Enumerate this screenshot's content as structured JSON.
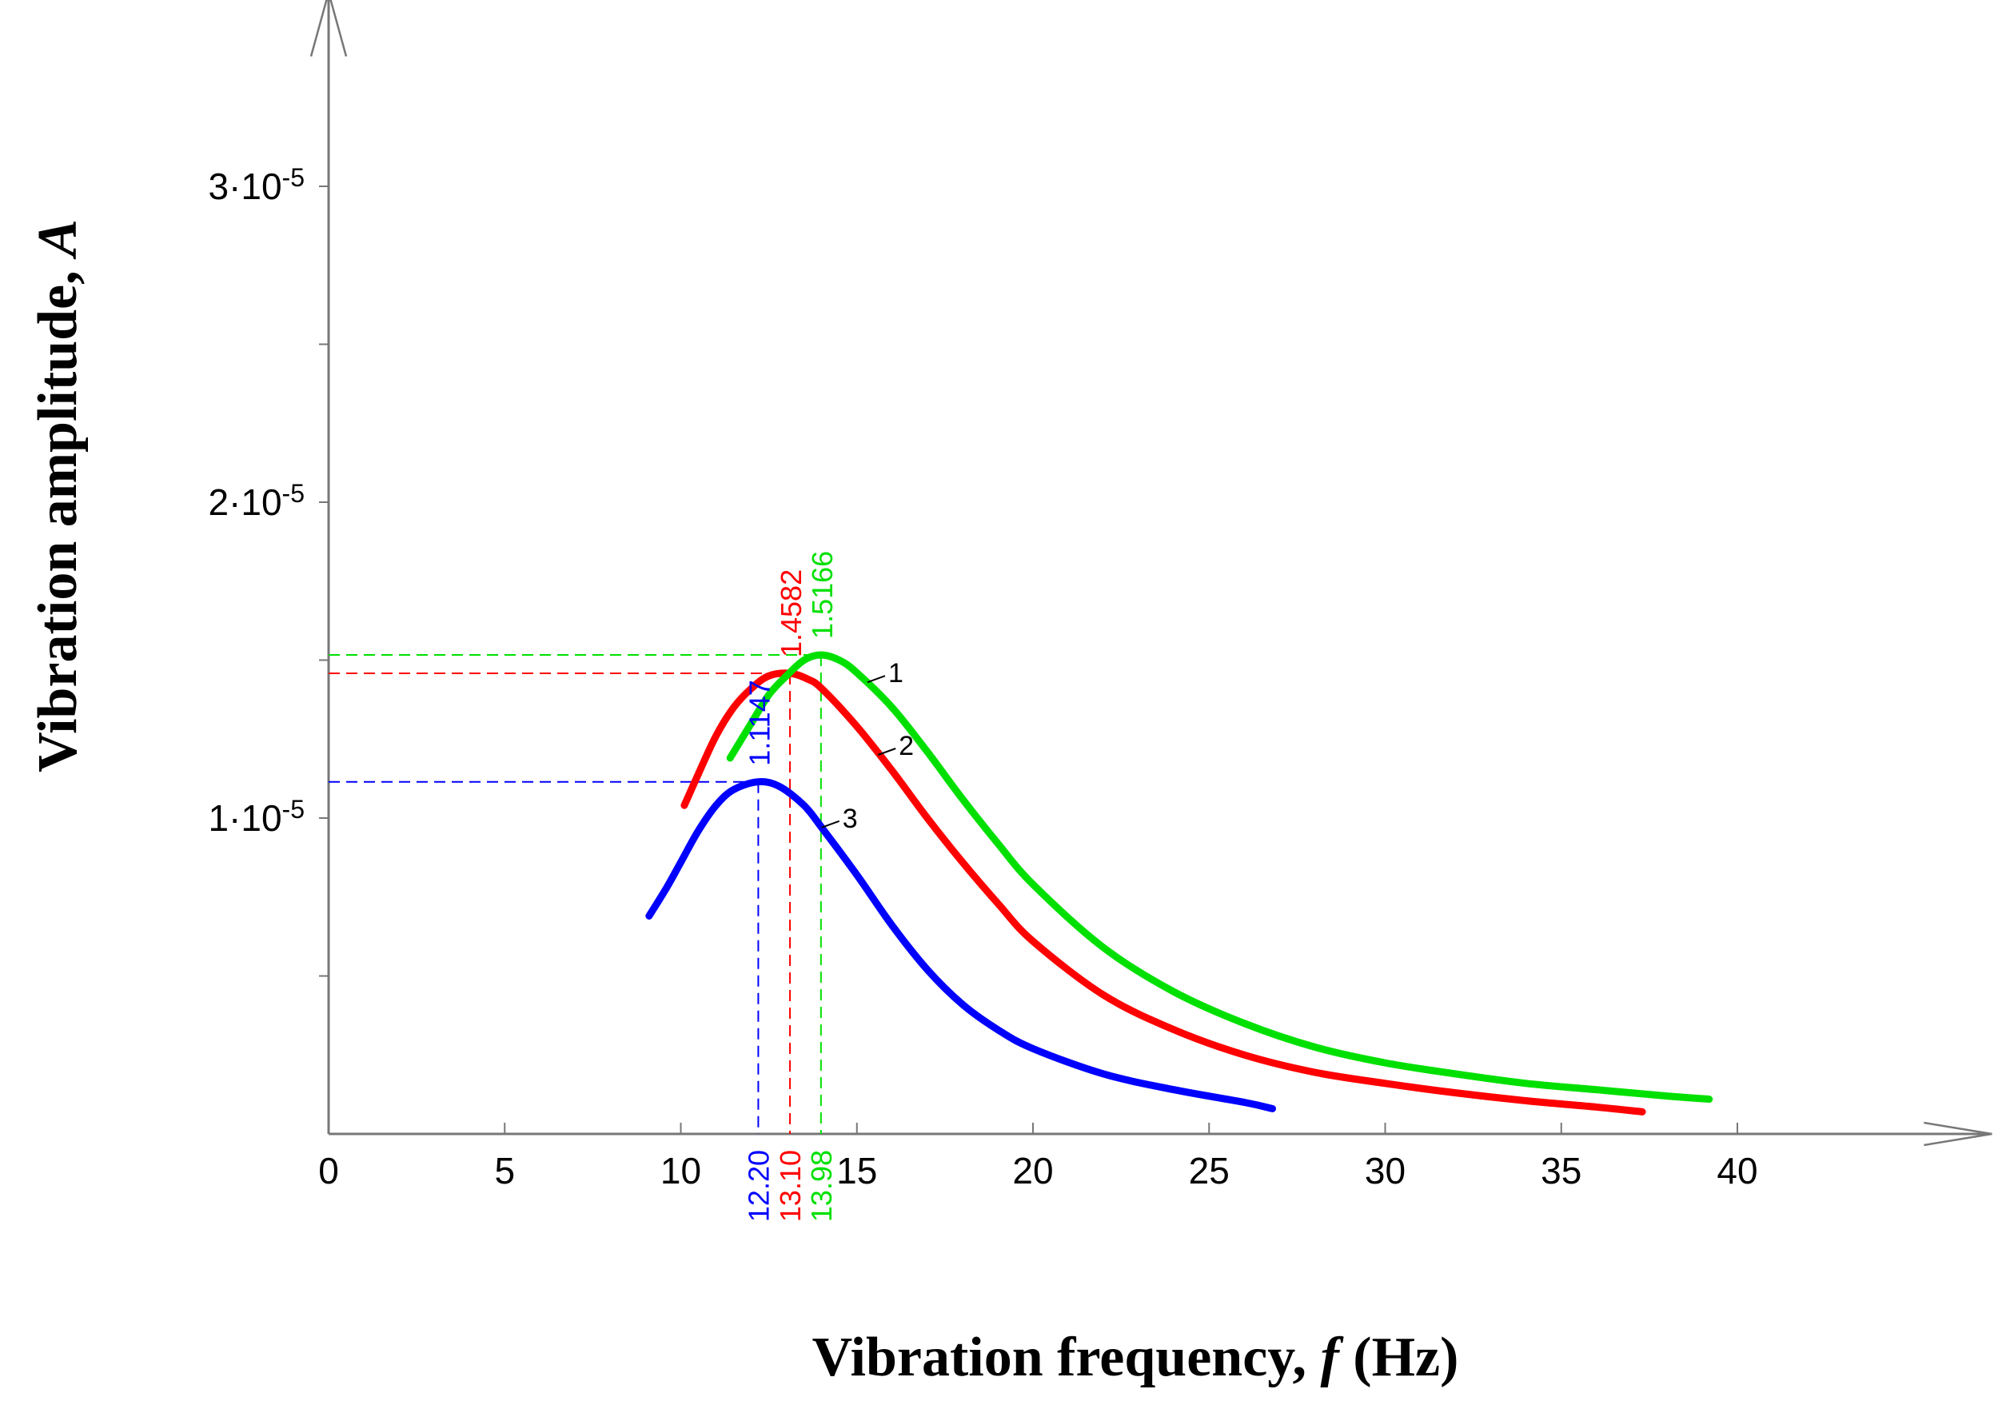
{
  "chart_data": {
    "type": "line",
    "title": "",
    "xlabel": {
      "main": "Vibration frequency, ",
      "var": "f",
      "unit": " (Hz)"
    },
    "ylabel": {
      "main": "Vibration  amplitude, ",
      "var": "A"
    },
    "xlim": [
      0,
      47
    ],
    "ylim": [
      0,
      3.5e-05
    ],
    "x_ticks": [
      0,
      5,
      10,
      15,
      20,
      25,
      30,
      35,
      40
    ],
    "y_ticks": [
      {
        "value": 1e-05,
        "base": "1·10",
        "exp": "-5"
      },
      {
        "value": 2e-05,
        "base": "2·10",
        "exp": "-5"
      },
      {
        "value": 3e-05,
        "base": "3·10",
        "exp": "-5"
      }
    ],
    "y_minor_ticks": [
      5e-06,
      1.5e-05,
      2.5e-05
    ],
    "series": [
      {
        "name": "1",
        "color": "#00e000",
        "x": [
          11.4,
          12,
          12.5,
          13,
          13.5,
          13.98,
          14.5,
          15,
          16,
          17,
          18,
          19,
          20,
          22,
          24,
          26,
          28,
          30,
          32,
          34,
          36,
          38,
          39.2
        ],
        "y": [
          1.19e-05,
          1.3e-05,
          1.39e-05,
          1.45e-05,
          1.5e-05,
          1.5166e-05,
          1.5e-05,
          1.46e-05,
          1.35e-05,
          1.21e-05,
          1.06e-05,
          9.2e-06,
          7.9e-06,
          5.9e-06,
          4.5e-06,
          3.5e-06,
          2.75e-06,
          2.25e-06,
          1.9e-06,
          1.6e-06,
          1.4e-06,
          1.2e-06,
          1.1e-06
        ],
        "peak_x": "13.98",
        "peak_y": "1.5166",
        "peak_xv": 13.98,
        "peak_yv": 1.5166e-05,
        "label_at": [
          15.3,
          1.43e-05
        ]
      },
      {
        "name": "2",
        "color": "#ff0000",
        "x": [
          10.1,
          10.5,
          11,
          11.5,
          12,
          12.5,
          13.1,
          13.6,
          14,
          15,
          16,
          17,
          18,
          19,
          20,
          22,
          24,
          26,
          28,
          30,
          32,
          34,
          36,
          37.3
        ],
        "y": [
          1.04e-05,
          1.14e-05,
          1.26e-05,
          1.35e-05,
          1.41e-05,
          1.45e-05,
          1.4582e-05,
          1.44e-05,
          1.41e-05,
          1.29e-05,
          1.15e-05,
          1e-05,
          8.6e-06,
          7.3e-06,
          6.1e-06,
          4.4e-06,
          3.3e-06,
          2.5e-06,
          1.95e-06,
          1.6e-06,
          1.3e-06,
          1.05e-06,
          8.5e-07,
          7e-07
        ],
        "peak_x": "13.10",
        "peak_y": "1.4582",
        "peak_xv": 13.1,
        "peak_yv": 1.4582e-05,
        "label_at": [
          15.6,
          1.2e-05
        ]
      },
      {
        "name": "3",
        "color": "#0000ff",
        "x": [
          9.1,
          9.6,
          10,
          10.5,
          11,
          11.5,
          12.2,
          12.8,
          13.5,
          14,
          15,
          16,
          17,
          18,
          19,
          20,
          22,
          24,
          26,
          26.8
        ],
        "y": [
          6.9e-06,
          7.8e-06,
          8.6e-06,
          9.6e-06,
          1.04e-05,
          1.09e-05,
          1.1147e-05,
          1.1e-05,
          1.04e-05,
          9.7e-06,
          8.2e-06,
          6.6e-06,
          5.2e-06,
          4.1e-06,
          3.3e-06,
          2.7e-06,
          1.9e-06,
          1.4e-06,
          1e-06,
          8e-07
        ],
        "peak_x": "12.20",
        "peak_y": "1.1147",
        "peak_xv": 12.2,
        "peak_yv": 1.1147e-05,
        "label_at": [
          14.0,
          9.7e-06
        ]
      }
    ]
  }
}
